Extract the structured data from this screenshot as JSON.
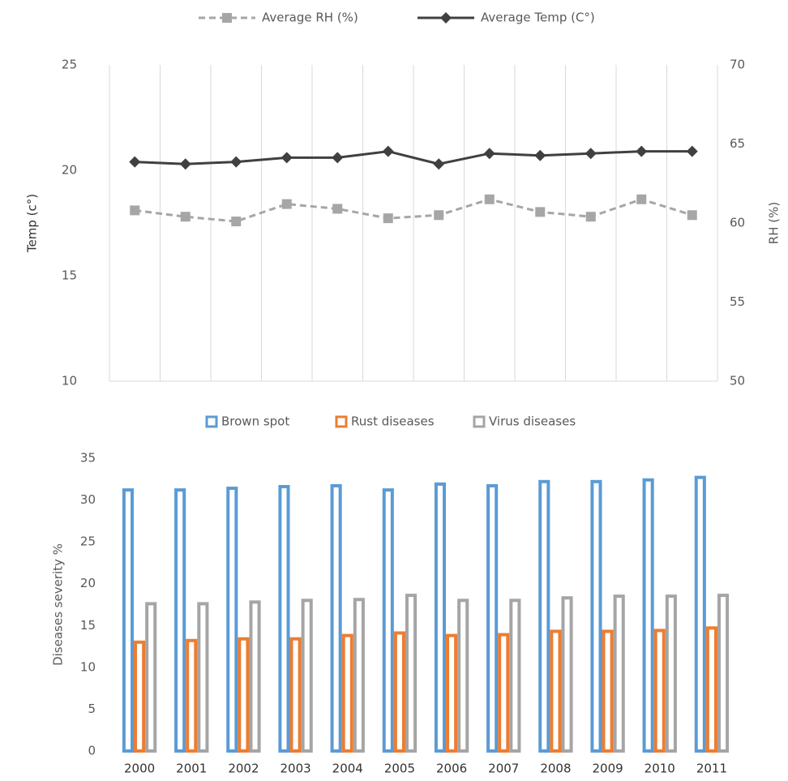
{
  "chart_data": [
    {
      "type": "line",
      "categories": [
        null,
        null,
        null,
        null,
        null,
        null,
        null,
        null,
        null,
        null,
        null,
        null
      ],
      "y_label": "Temp (c°)",
      "y2_label": "RH (%)",
      "ylim": [
        10,
        25
      ],
      "yticks": [
        10,
        15,
        20,
        25
      ],
      "y2lim": [
        50,
        70
      ],
      "y2ticks": [
        50,
        55,
        60,
        65,
        70
      ],
      "series": [
        {
          "name": "Average RH (%)",
          "color": "#a6a6a6",
          "dashed": true,
          "marker": "square",
          "axis": "y2",
          "values": [
            60.8,
            60.4,
            60.1,
            61.2,
            60.9,
            60.3,
            60.5,
            61.5,
            60.7,
            60.4,
            61.5,
            60.5
          ]
        },
        {
          "name": "Average Temp (C°)",
          "color": "#404040",
          "dashed": false,
          "marker": "diamond",
          "values": [
            20.4,
            20.3,
            20.4,
            20.6,
            20.6,
            20.9,
            20.3,
            20.8,
            20.7,
            20.8,
            20.9,
            20.9
          ]
        }
      ]
    },
    {
      "type": "bar",
      "categories": [
        "2000",
        "2001",
        "2002",
        "2003",
        "2004",
        "2005",
        "2006",
        "2007",
        "2008",
        "2009",
        "2010",
        "2011"
      ],
      "y_label": "Diseases severity %",
      "ylim": [
        0,
        35
      ],
      "yticks": [
        0,
        5,
        10,
        15,
        20,
        25,
        30,
        35
      ],
      "series": [
        {
          "name": "Brown spot",
          "color": "#5b9bd5",
          "values": [
            31.4,
            31.4,
            31.6,
            31.8,
            31.9,
            31.4,
            32.1,
            31.9,
            32.4,
            32.4,
            32.6,
            32.9
          ]
        },
        {
          "name": "Rust  diseases",
          "color": "#ed7d31",
          "values": [
            13.2,
            13.4,
            13.6,
            13.6,
            14.0,
            14.3,
            14.0,
            14.1,
            14.5,
            14.5,
            14.6,
            14.9
          ]
        },
        {
          "name": "Virus diseases",
          "color": "#a5a5a5",
          "values": [
            17.8,
            17.8,
            18.0,
            18.2,
            18.3,
            18.8,
            18.2,
            18.2,
            18.5,
            18.7,
            18.7,
            18.8
          ]
        }
      ]
    }
  ]
}
